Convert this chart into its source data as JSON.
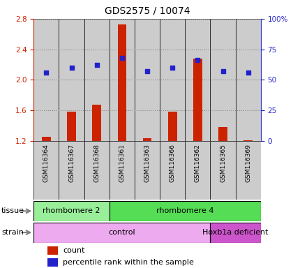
{
  "title": "GDS2575 / 10074",
  "samples": [
    "GSM116364",
    "GSM116367",
    "GSM116368",
    "GSM116361",
    "GSM116363",
    "GSM116366",
    "GSM116362",
    "GSM116365",
    "GSM116369"
  ],
  "count_values": [
    1.25,
    1.58,
    1.67,
    2.73,
    1.23,
    1.58,
    2.28,
    1.38,
    1.21
  ],
  "percentile_values": [
    56,
    60,
    62,
    68,
    57,
    60,
    66,
    57,
    56
  ],
  "ylim_left": [
    1.2,
    2.8
  ],
  "ylim_right": [
    0,
    100
  ],
  "yticks_left": [
    1.2,
    1.6,
    2.0,
    2.4,
    2.8
  ],
  "yticks_right": [
    0,
    25,
    50,
    75,
    100
  ],
  "tissue_groups": [
    {
      "label": "rhombomere 2",
      "start": 0,
      "end": 3
    },
    {
      "label": "rhombomere 4",
      "start": 3,
      "end": 9
    }
  ],
  "strain_groups": [
    {
      "label": "control",
      "start": 0,
      "end": 7
    },
    {
      "label": "Hoxb1a deficient",
      "start": 7,
      "end": 9
    }
  ],
  "tissue_colors": [
    "#99ee99",
    "#55dd55"
  ],
  "strain_colors": [
    "#eeaaee",
    "#cc55cc"
  ],
  "bar_color": "#cc2200",
  "dot_color": "#2222cc",
  "bar_bottom": 1.2,
  "grid_color": "#888888",
  "sample_bg_color": "#cccccc",
  "left_axis_color": "#cc2200",
  "right_axis_color": "#2222cc",
  "legend_count_label": "count",
  "legend_pct_label": "percentile rank within the sample"
}
